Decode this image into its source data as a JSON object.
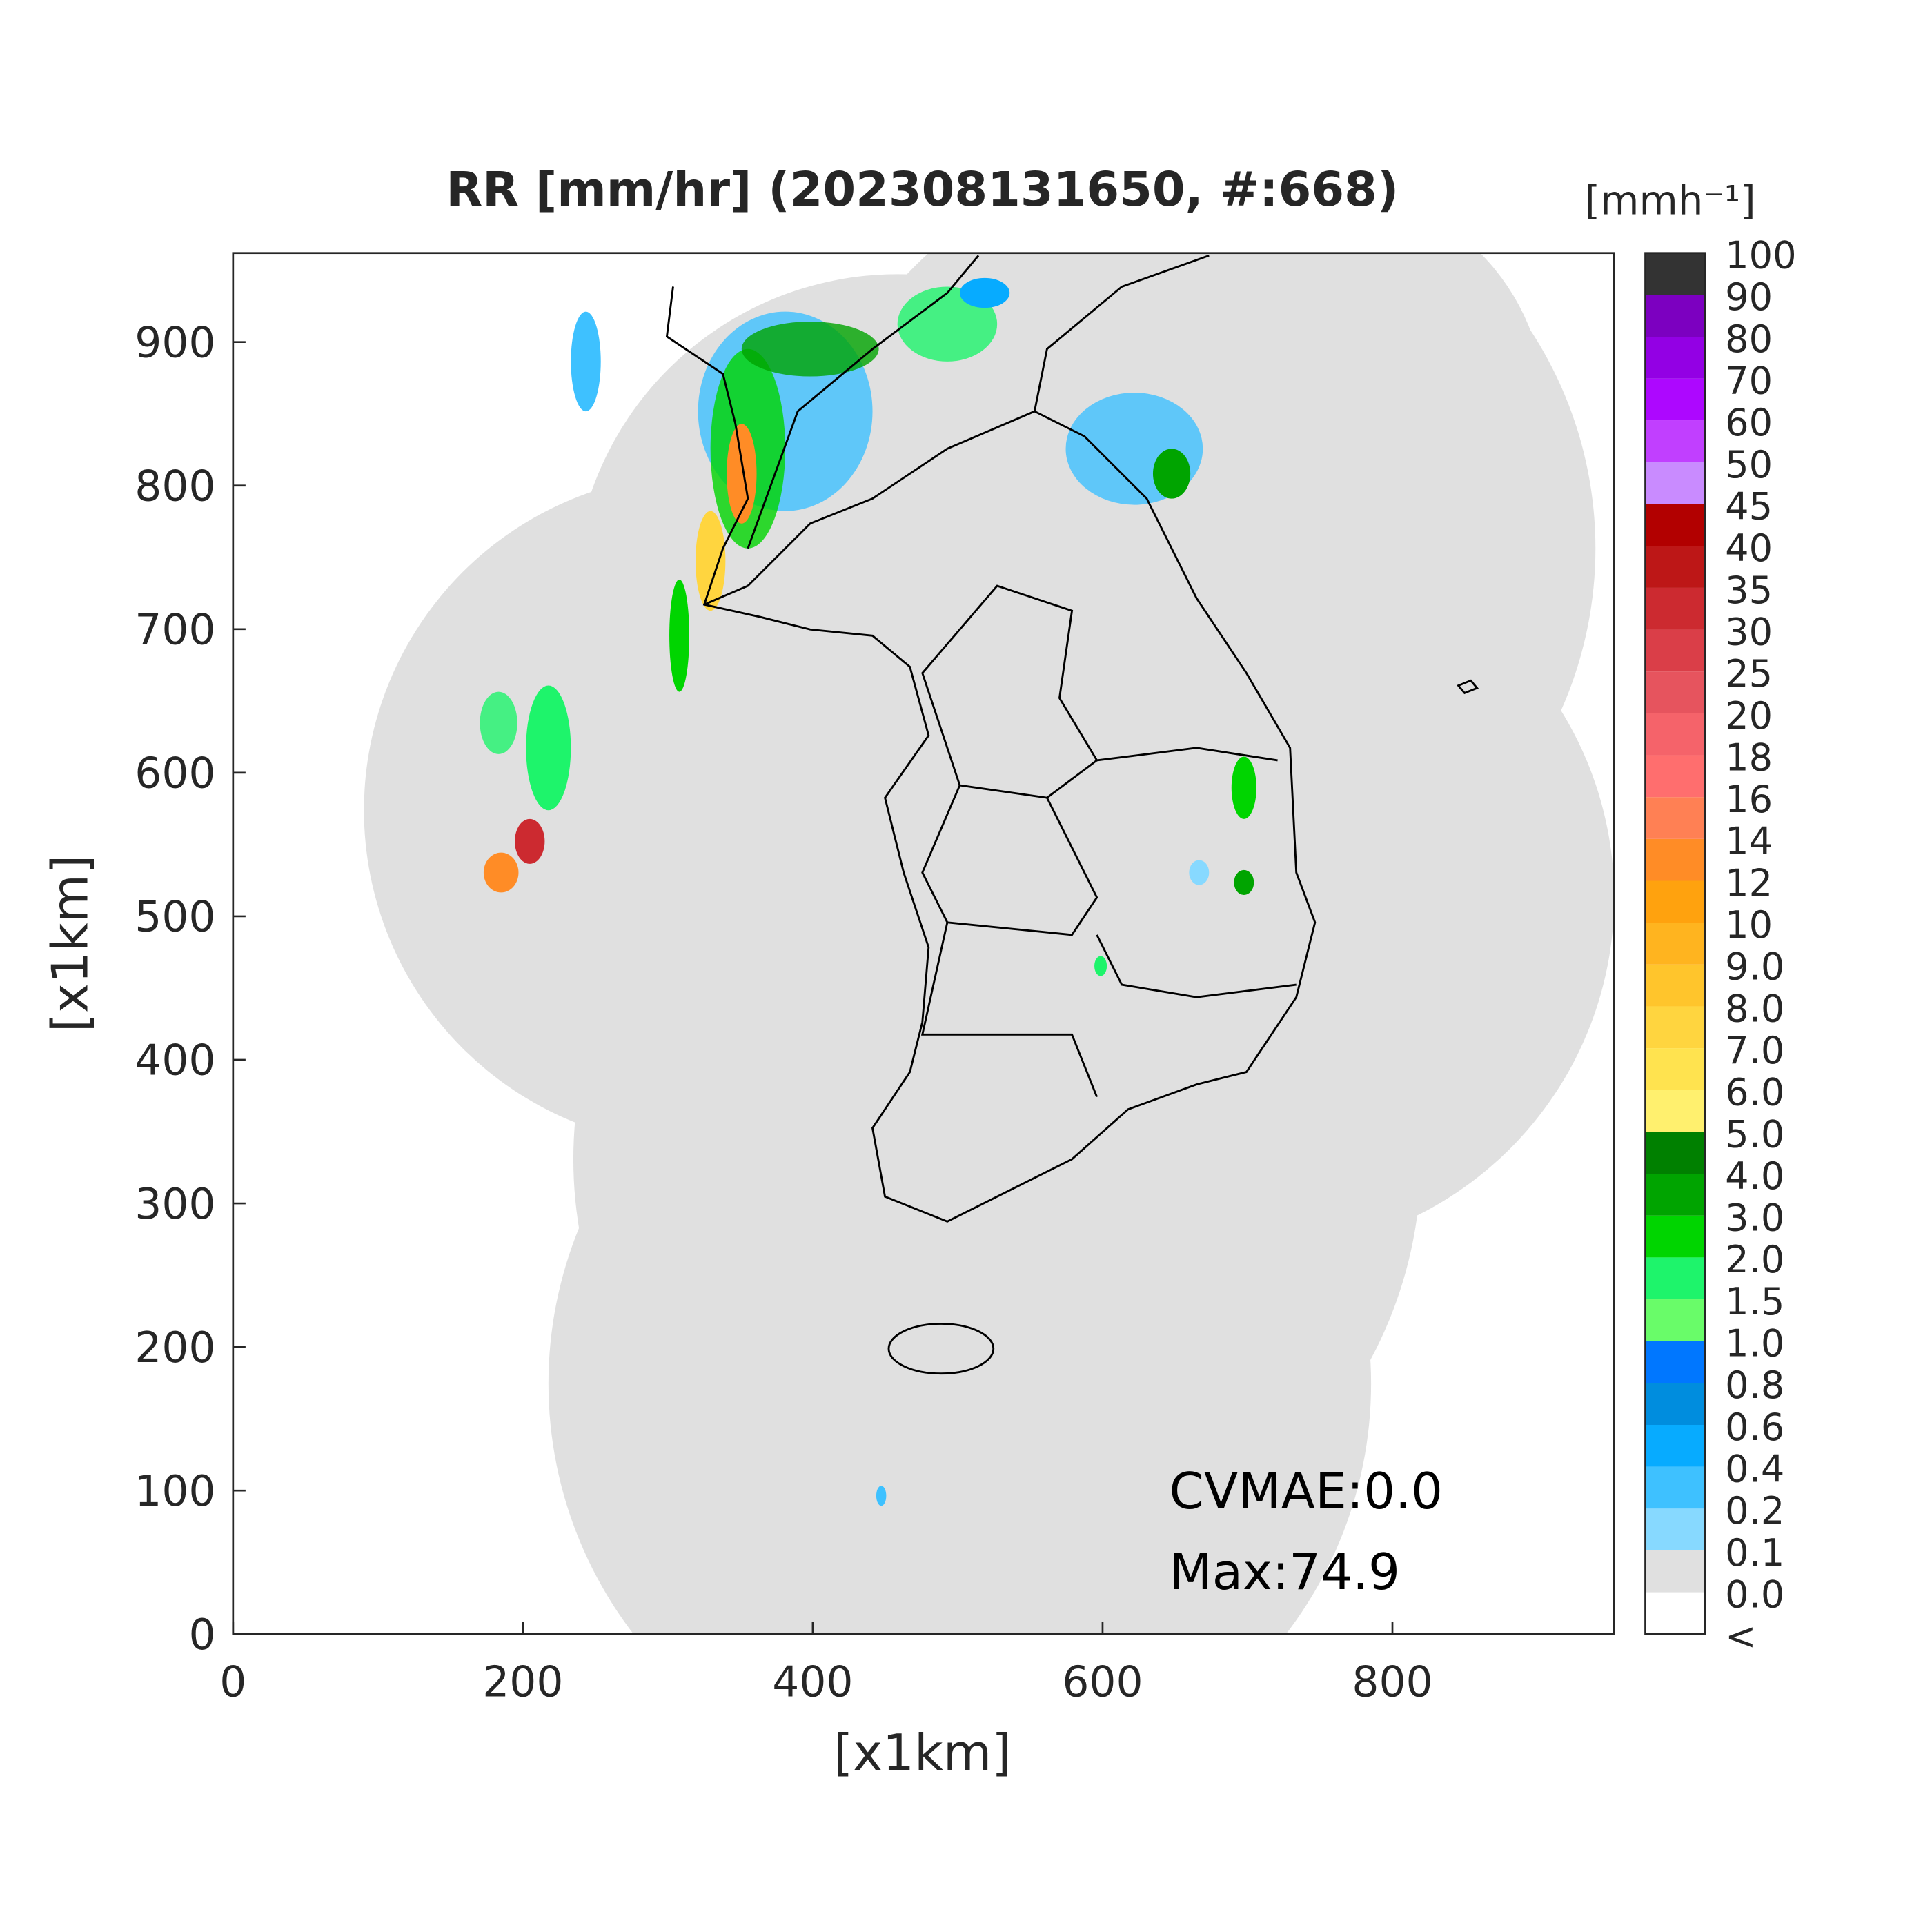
{
  "title": "RR [mm/hr] (202308131650, #:668)",
  "x_axis": {
    "label": "[x1km]",
    "lim": [
      0,
      953
    ],
    "ticks": [
      0,
      200,
      400,
      600,
      800
    ]
  },
  "y_axis": {
    "label": "[x1km]",
    "lim": [
      0,
      962
    ],
    "ticks": [
      0,
      100,
      200,
      300,
      400,
      500,
      600,
      700,
      800,
      900
    ]
  },
  "colorbar": {
    "unit": "[mmh⁻¹]",
    "labels": [
      "<",
      "0.0",
      "0.1",
      "0.2",
      "0.4",
      "0.6",
      "0.8",
      "1.0",
      "1.5",
      "2.0",
      "3.0",
      "4.0",
      "5.0",
      "6.0",
      "7.0",
      "8.0",
      "9.0",
      "10",
      "12",
      "14",
      "16",
      "18",
      "20",
      "25",
      "30",
      "35",
      "40",
      "45",
      "50",
      "60",
      "70",
      "80",
      "90",
      "100"
    ],
    "colors": [
      "#ffffff",
      "#e0e0e0",
      "#87d9ff",
      "#3ec1ff",
      "#07abff",
      "#008dde",
      "#0077ff",
      "#69fc69",
      "#1ef46b",
      "#00d500",
      "#00a400",
      "#008000",
      "#fff06e",
      "#ffe34f",
      "#ffd53f",
      "#ffc52c",
      "#ffb41f",
      "#ffa20e",
      "#ff8c26",
      "#ff8054",
      "#ff6e6e",
      "#f5636a",
      "#e6545e",
      "#da3e48",
      "#cc2a30",
      "#bd1717",
      "#b20000",
      "#c98bff",
      "#c13fff",
      "#ad07ff",
      "#9300e4",
      "#7c00c0",
      "#333333"
    ]
  },
  "annotations": [
    "CVMAE:0.0",
    "Max:74.9"
  ]
}
